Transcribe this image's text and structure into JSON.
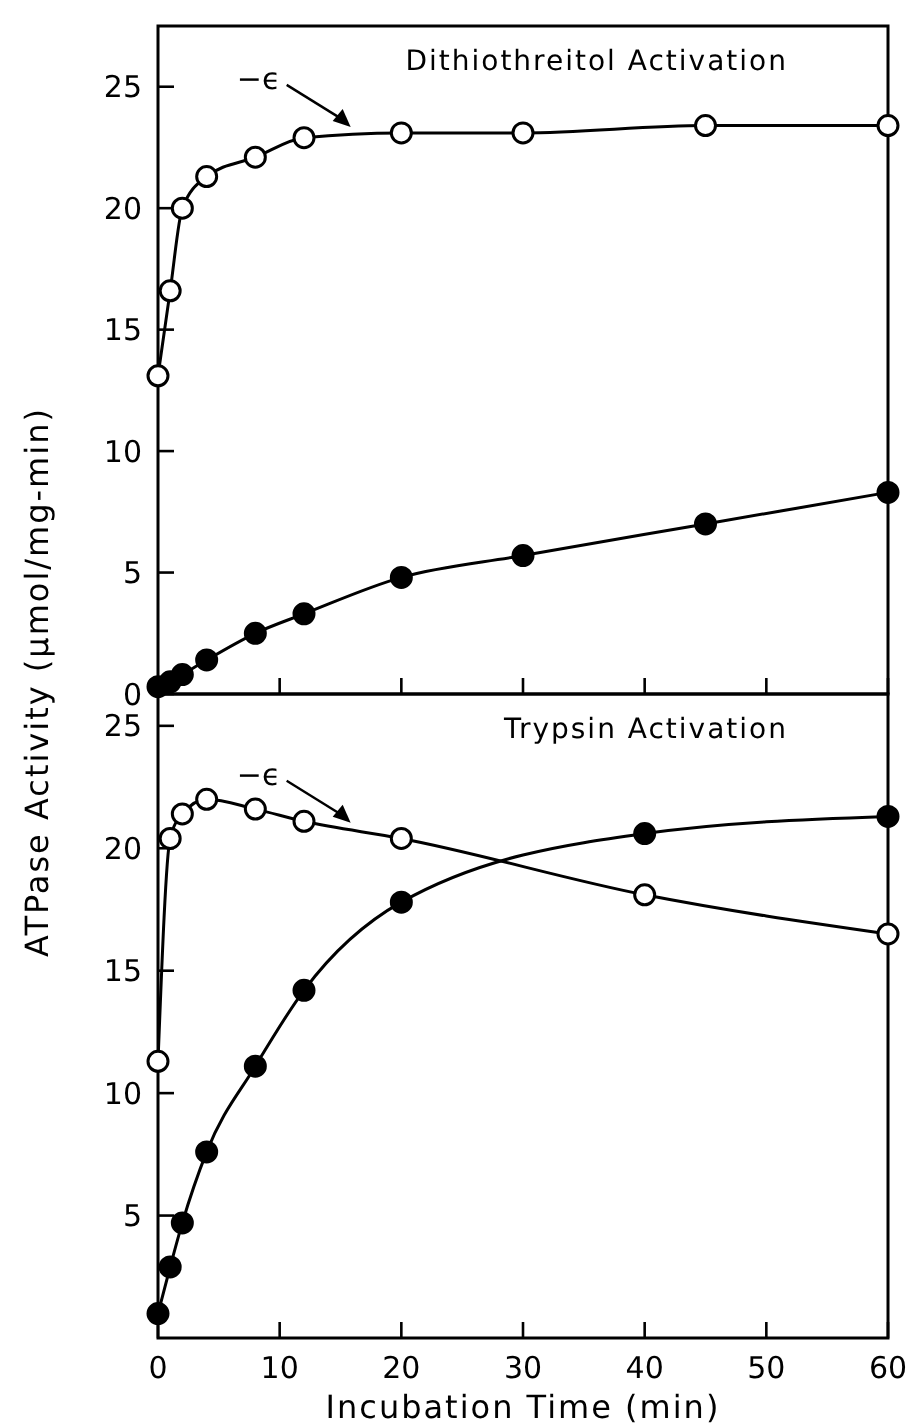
{
  "chart_data": [
    {
      "type": "line",
      "title": "Dithiothreitol Activation",
      "ylabel": "ATPase Activity (μmol/mg-min)",
      "marker": "circle",
      "xlim": [
        0,
        60
      ],
      "xticks": [
        0,
        10,
        20,
        30,
        40,
        50,
        60
      ],
      "ylim": [
        0,
        27.5
      ],
      "yticks": [
        0,
        5,
        10,
        15,
        20,
        25
      ],
      "tick_labels": "y",
      "series": [
        {
          "color": "#ffffff",
          "x": [
            0,
            1,
            2,
            4,
            8,
            12,
            20,
            30,
            45,
            60
          ],
          "values": [
            13.1,
            16.6,
            20.0,
            21.3,
            22.1,
            22.9,
            23.1,
            23.1,
            23.4,
            23.4
          ]
        },
        {
          "color": "#000000",
          "x": [
            0,
            1,
            2,
            4,
            8,
            12,
            20,
            30,
            45,
            60
          ],
          "values": [
            0.3,
            0.5,
            0.8,
            1.4,
            2.5,
            3.3,
            4.8,
            5.7,
            7.0,
            8.3
          ]
        }
      ],
      "annotations": [
        {
          "text": "−ϵ",
          "x": 16,
          "y": 23.1
        }
      ]
    },
    {
      "type": "line",
      "title": "Trypsin Activation",
      "xlabel": "Incubation Time (min)",
      "marker": "circle",
      "xlim": [
        0,
        60
      ],
      "xticks": [
        0,
        10,
        20,
        30,
        40,
        50,
        60
      ],
      "ylim": [
        0,
        26.3
      ],
      "yticks": [
        5,
        10,
        15,
        20,
        25
      ],
      "series": [
        {
          "color": "#ffffff",
          "x": [
            0,
            1,
            2,
            4,
            8,
            12,
            20,
            40,
            60
          ],
          "values": [
            11.3,
            20.4,
            21.4,
            22.0,
            21.6,
            21.1,
            20.4,
            18.1,
            16.5
          ]
        },
        {
          "color": "#000000",
          "x": [
            0,
            1,
            2,
            4,
            8,
            12,
            20,
            40,
            60
          ],
          "values": [
            1.0,
            2.9,
            4.7,
            7.6,
            11.1,
            14.2,
            17.8,
            20.6,
            21.3
          ]
        }
      ],
      "annotations": [
        {
          "text": "−ϵ",
          "x": 16,
          "y": 20.8
        }
      ]
    }
  ]
}
